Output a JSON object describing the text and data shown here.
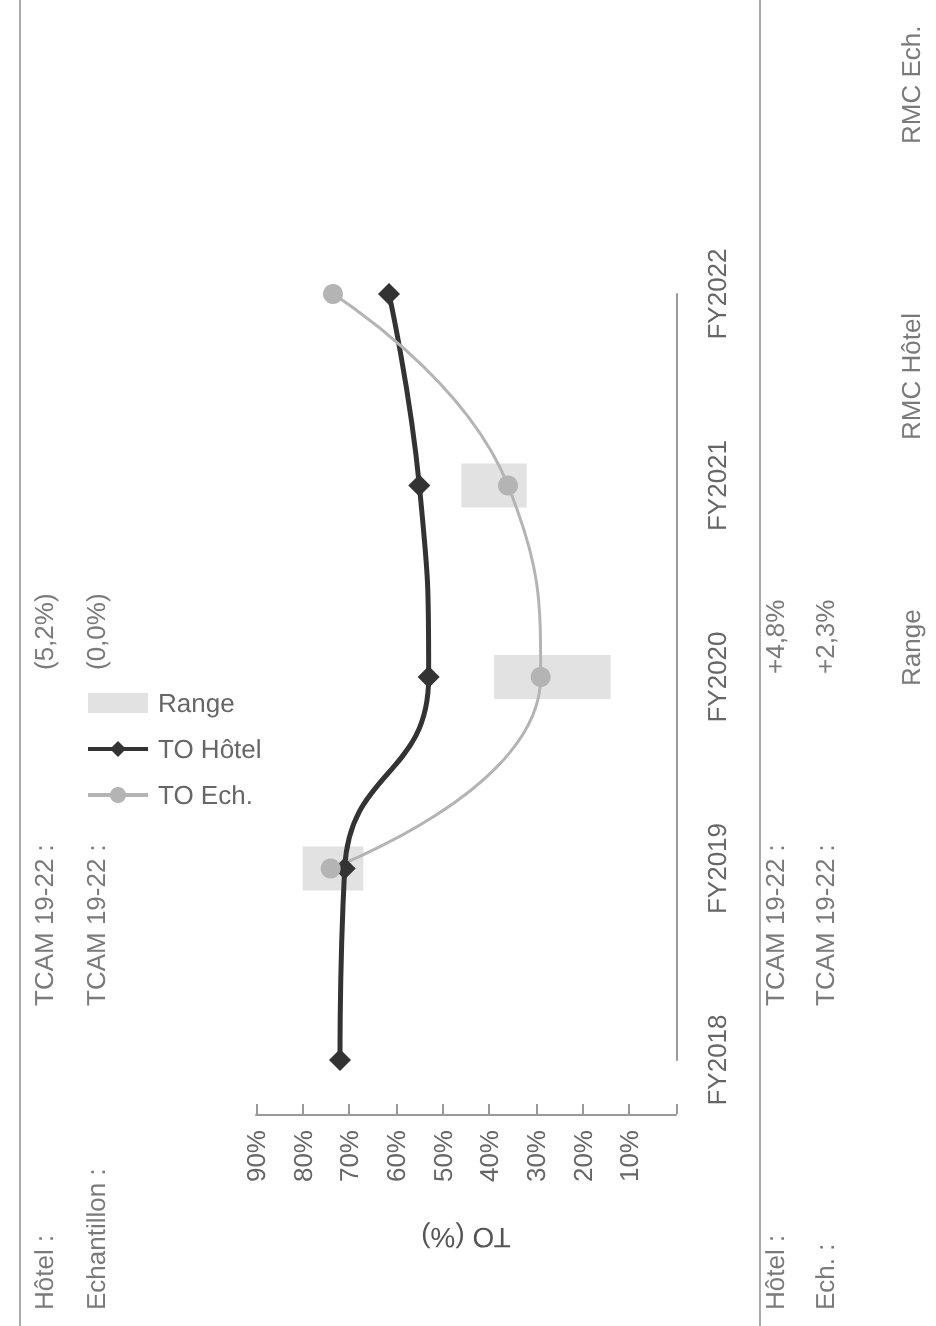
{
  "chart_data": [
    {
      "type": "line",
      "orientation": "horizontal",
      "xlabel": "TO (%)",
      "categories": [
        "FY2022",
        "FY2021",
        "FY2020",
        "FY2019",
        "FY2018"
      ],
      "series": [
        {
          "name": "Range",
          "type": "bar",
          "color": "#e2e2e2",
          "base": [
            null,
            32,
            14,
            67,
            null
          ],
          "values": [
            null,
            14,
            25,
            13,
            null
          ]
        },
        {
          "name": "TO Hôtel",
          "type": "line",
          "color": "#333333",
          "marker": "diamond",
          "values": [
            61.5,
            55,
            53,
            71,
            72
          ]
        },
        {
          "name": "TO Ech.",
          "type": "line",
          "color": "#b4b4b4",
          "marker": "circle",
          "values": [
            73.5,
            36,
            29,
            74,
            null
          ]
        }
      ],
      "xlim": [
        90,
        0
      ],
      "xticks": [
        {
          "value": 90,
          "label": "90%"
        },
        {
          "value": 80,
          "label": "80%"
        },
        {
          "value": 70,
          "label": "70%"
        },
        {
          "value": 60,
          "label": "60%"
        },
        {
          "value": 50,
          "label": "50%"
        },
        {
          "value": 40,
          "label": "40%"
        },
        {
          "value": 30,
          "label": "30%"
        },
        {
          "value": 20,
          "label": "20%"
        },
        {
          "value": 10,
          "label": "10%"
        },
        {
          "value": 0,
          "label": null
        }
      ],
      "legend": "left",
      "line_style": "solid",
      "annotations": [
        "Hôtel :",
        "TCAM 19-22 :",
        "(5,2%)",
        "Echantillon :",
        "TCAM 19-22 :",
        "(0,0%)"
      ]
    },
    {
      "type": "other",
      "annotations": [
        "Hôtel :",
        "Ech. :",
        "TCAM 19-22 :",
        "TCAM 19-22 :",
        "+4,8%",
        "+2,3%",
        "Range",
        "RMC Hôtel",
        "RMC Ech."
      ]
    }
  ]
}
